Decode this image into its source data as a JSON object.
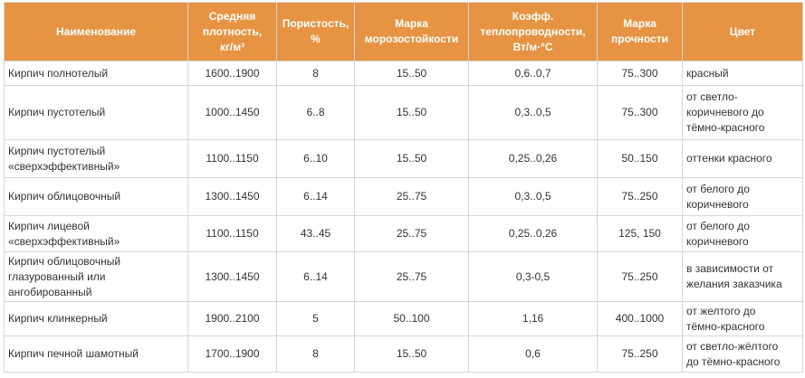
{
  "table": {
    "headers": [
      "Наименование",
      "Средняя\nплотность,\nкг/м³",
      "Пористость,\n%",
      "Марка\nморозостойкости",
      "Коэфф.\nтеплопроводности,\nВт/м·°С",
      "Марка\nпрочности",
      "Цвет"
    ],
    "rows": [
      [
        "Кирпич полнотелый",
        "1600..1900",
        "8",
        "15..50",
        "0,6..0,7",
        "75..300",
        "красный"
      ],
      [
        "Кирпич пустотелый",
        "1000..1450",
        "6..8",
        "15..50",
        "0,3..0,5",
        "75..300",
        "от светло-\nкоричневого до\nтёмно-красного"
      ],
      [
        "Кирпич пустотелый\n«сверхэффективный»",
        "1100..1150",
        "6..10",
        "15..50",
        "0,25..0,26",
        "50..150",
        "оттенки красного"
      ],
      [
        "Кирпич облицовочный",
        "1300..1450",
        "6..14",
        "25..75",
        "0,3..0,5",
        "75..250",
        "от белого до\nкоричневого"
      ],
      [
        "Кирпич лицевой\n«сверхэффективный»",
        "1100..1150",
        "43..45",
        "25..75",
        "0,25..0,26",
        "125, 150",
        "от белого до\nкоричневого"
      ],
      [
        "Кирпич облицовочный\nглазурованный или\nангобированный",
        "1300..1450",
        "6..14",
        "25..75",
        "0,3-0,5",
        "75..250",
        "в зависимости от\nжелания заказчика"
      ],
      [
        "Кирпич клинкерный",
        "1900..2100",
        "5",
        "50..100",
        "1,16",
        "400..1000",
        "от желтого до\nтёмно-красного"
      ],
      [
        "Кирпич печной шамотный",
        "1700..1900",
        "8",
        "15..50",
        "0,6",
        "75..250",
        "от светло-жёлтого\nдо тёмно-красного"
      ]
    ]
  },
  "colors": {
    "header_bg": "#e69443",
    "header_text": "#ffffff",
    "border": "#d6d6d6",
    "body_text": "#333333"
  }
}
